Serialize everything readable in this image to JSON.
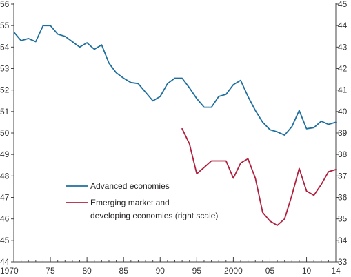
{
  "chart_data": {
    "type": "line",
    "title": "",
    "xlabel": "",
    "ylabel": "",
    "x_tick_labels": [
      {
        "year": 1970,
        "label": "1970"
      },
      {
        "year": 1975,
        "label": "75"
      },
      {
        "year": 1980,
        "label": "80"
      },
      {
        "year": 1985,
        "label": "85"
      },
      {
        "year": 1990,
        "label": "90"
      },
      {
        "year": 1995,
        "label": "95"
      },
      {
        "year": 2000,
        "label": "2000"
      },
      {
        "year": 2005,
        "label": "05"
      },
      {
        "year": 2010,
        "label": "10"
      },
      {
        "year": 2014,
        "label": "14"
      }
    ],
    "xlim": [
      1970,
      2014
    ],
    "y_left": {
      "ylim": [
        44,
        56
      ],
      "ticks": [
        44,
        45,
        46,
        47,
        48,
        49,
        50,
        51,
        52,
        53,
        54,
        55,
        56
      ]
    },
    "y_right": {
      "ylim": [
        33,
        45
      ],
      "ticks": [
        33,
        34,
        35,
        36,
        37,
        38,
        39,
        40,
        41,
        42,
        43,
        44,
        45
      ]
    },
    "legend_position": "center-left",
    "grid": false,
    "series": [
      {
        "name": "Advanced economies",
        "axis": "left",
        "color": "#1f6f9e",
        "x": [
          1970,
          1971,
          1972,
          1973,
          1974,
          1975,
          1976,
          1977,
          1978,
          1979,
          1980,
          1981,
          1982,
          1983,
          1984,
          1985,
          1986,
          1987,
          1988,
          1989,
          1990,
          1991,
          1992,
          1993,
          1994,
          1995,
          1996,
          1997,
          1998,
          1999,
          2000,
          2001,
          2002,
          2003,
          2004,
          2005,
          2006,
          2007,
          2008,
          2009,
          2010,
          2011,
          2012,
          2013,
          2014
        ],
        "values": [
          54.7,
          54.3,
          54.4,
          54.25,
          55.0,
          55.0,
          54.6,
          54.5,
          54.25,
          54.0,
          54.2,
          53.9,
          54.1,
          53.25,
          52.8,
          52.55,
          52.35,
          52.3,
          51.9,
          51.5,
          51.7,
          52.3,
          52.55,
          52.55,
          52.1,
          51.6,
          51.2,
          51.2,
          51.7,
          51.8,
          52.25,
          52.45,
          51.7,
          51.05,
          50.5,
          50.15,
          50.05,
          49.9,
          50.3,
          51.05,
          50.2,
          50.25,
          50.55,
          50.4,
          50.5
        ]
      },
      {
        "name": "Emerging market and developing economies (right scale)",
        "legend_lines": [
          "Emerging market and",
          "developing economies (right scale)"
        ],
        "axis": "right",
        "color": "#b0203e",
        "x": [
          1993,
          1994,
          1995,
          1996,
          1997,
          1998,
          1999,
          2000,
          2001,
          2002,
          2003,
          2004,
          2005,
          2006,
          2007,
          2008,
          2009,
          2010,
          2011,
          2012,
          2013,
          2014
        ],
        "values": [
          39.2,
          38.5,
          37.1,
          37.4,
          37.7,
          37.7,
          37.7,
          36.9,
          37.6,
          37.8,
          36.9,
          35.3,
          34.9,
          34.7,
          35.0,
          36.1,
          37.35,
          36.3,
          36.1,
          36.6,
          37.2,
          37.3
        ]
      }
    ]
  }
}
